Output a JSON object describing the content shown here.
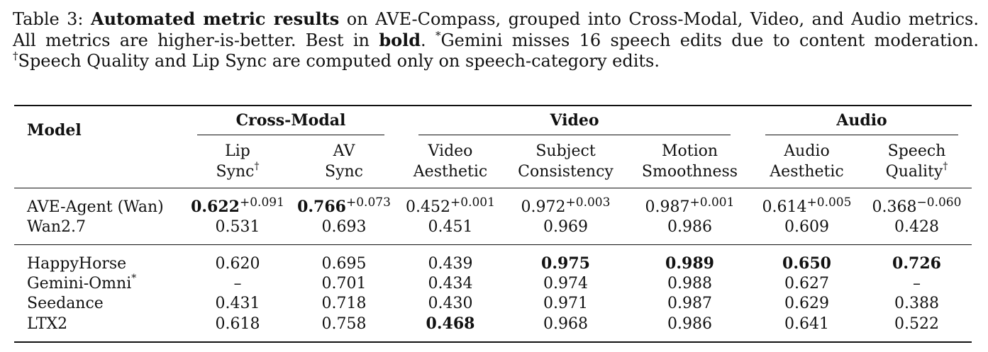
{
  "caption": {
    "label": "Table 3:",
    "bold_title": "Automated metric results",
    "text_part1": " on AVE-Compass, grouped into Cross-Modal, Video, and Audio metrics. All metrics are higher-is-better. Best in ",
    "bold_word": "bold",
    "text_part2": ". ",
    "footnote1_mark": "*",
    "footnote1_text": "Gemini misses 16 speech edits due to content moderation. ",
    "footnote2_mark": "†",
    "footnote2_text": "Speech Quality and Lip Sync are computed only on speech-category edits."
  },
  "table": {
    "model_header": "Model",
    "groups": [
      {
        "label": "Cross-Modal",
        "span": 2
      },
      {
        "label": "Video",
        "span": 3
      },
      {
        "label": "Audio",
        "span": 2
      }
    ],
    "columns": [
      {
        "line1": "Lip",
        "line2": "Sync",
        "mark": "†"
      },
      {
        "line1": "AV",
        "line2": "Sync",
        "mark": ""
      },
      {
        "line1": "Video",
        "line2": "Aesthetic",
        "mark": ""
      },
      {
        "line1": "Subject",
        "line2": "Consistency",
        "mark": ""
      },
      {
        "line1": "Motion",
        "line2": "Smoothness",
        "mark": ""
      },
      {
        "line1": "Audio",
        "line2": "Aesthetic",
        "mark": ""
      },
      {
        "line1": "Speech",
        "line2": "Quality",
        "mark": "†"
      }
    ],
    "groups_of_rows": [
      {
        "rows": [
          {
            "model": "AVE-Agent (Wan)",
            "mark": "",
            "cells": [
              {
                "value": "0.622",
                "delta": "+0.091",
                "bold": true
              },
              {
                "value": "0.766",
                "delta": "+0.073",
                "bold": true
              },
              {
                "value": "0.452",
                "delta": "+0.001",
                "bold": false
              },
              {
                "value": "0.972",
                "delta": "+0.003",
                "bold": false
              },
              {
                "value": "0.987",
                "delta": "+0.001",
                "bold": false
              },
              {
                "value": "0.614",
                "delta": "+0.005",
                "bold": false
              },
              {
                "value": "0.368",
                "delta": "−0.060",
                "bold": false
              }
            ]
          },
          {
            "model": "Wan2.7",
            "mark": "",
            "cells": [
              {
                "value": "0.531",
                "delta": "",
                "bold": false
              },
              {
                "value": "0.693",
                "delta": "",
                "bold": false
              },
              {
                "value": "0.451",
                "delta": "",
                "bold": false
              },
              {
                "value": "0.969",
                "delta": "",
                "bold": false
              },
              {
                "value": "0.986",
                "delta": "",
                "bold": false
              },
              {
                "value": "0.609",
                "delta": "",
                "bold": false
              },
              {
                "value": "0.428",
                "delta": "",
                "bold": false
              }
            ]
          }
        ]
      },
      {
        "rows": [
          {
            "model": "HappyHorse",
            "mark": "",
            "cells": [
              {
                "value": "0.620",
                "delta": "",
                "bold": false
              },
              {
                "value": "0.695",
                "delta": "",
                "bold": false
              },
              {
                "value": "0.439",
                "delta": "",
                "bold": false
              },
              {
                "value": "0.975",
                "delta": "",
                "bold": true
              },
              {
                "value": "0.989",
                "delta": "",
                "bold": true
              },
              {
                "value": "0.650",
                "delta": "",
                "bold": true
              },
              {
                "value": "0.726",
                "delta": "",
                "bold": true
              }
            ]
          },
          {
            "model": "Gemini-Omni",
            "mark": "*",
            "cells": [
              {
                "value": "–",
                "delta": "",
                "bold": false
              },
              {
                "value": "0.701",
                "delta": "",
                "bold": false
              },
              {
                "value": "0.434",
                "delta": "",
                "bold": false
              },
              {
                "value": "0.974",
                "delta": "",
                "bold": false
              },
              {
                "value": "0.988",
                "delta": "",
                "bold": false
              },
              {
                "value": "0.627",
                "delta": "",
                "bold": false
              },
              {
                "value": "–",
                "delta": "",
                "bold": false
              }
            ]
          },
          {
            "model": "Seedance",
            "mark": "",
            "cells": [
              {
                "value": "0.431",
                "delta": "",
                "bold": false
              },
              {
                "value": "0.718",
                "delta": "",
                "bold": false
              },
              {
                "value": "0.430",
                "delta": "",
                "bold": false
              },
              {
                "value": "0.971",
                "delta": "",
                "bold": false
              },
              {
                "value": "0.987",
                "delta": "",
                "bold": false
              },
              {
                "value": "0.629",
                "delta": "",
                "bold": false
              },
              {
                "value": "0.388",
                "delta": "",
                "bold": false
              }
            ]
          },
          {
            "model": "LTX2",
            "mark": "",
            "cells": [
              {
                "value": "0.618",
                "delta": "",
                "bold": false
              },
              {
                "value": "0.758",
                "delta": "",
                "bold": false
              },
              {
                "value": "0.468",
                "delta": "",
                "bold": true
              },
              {
                "value": "0.968",
                "delta": "",
                "bold": false
              },
              {
                "value": "0.986",
                "delta": "",
                "bold": false
              },
              {
                "value": "0.641",
                "delta": "",
                "bold": false
              },
              {
                "value": "0.522",
                "delta": "",
                "bold": false
              }
            ]
          }
        ]
      }
    ]
  }
}
